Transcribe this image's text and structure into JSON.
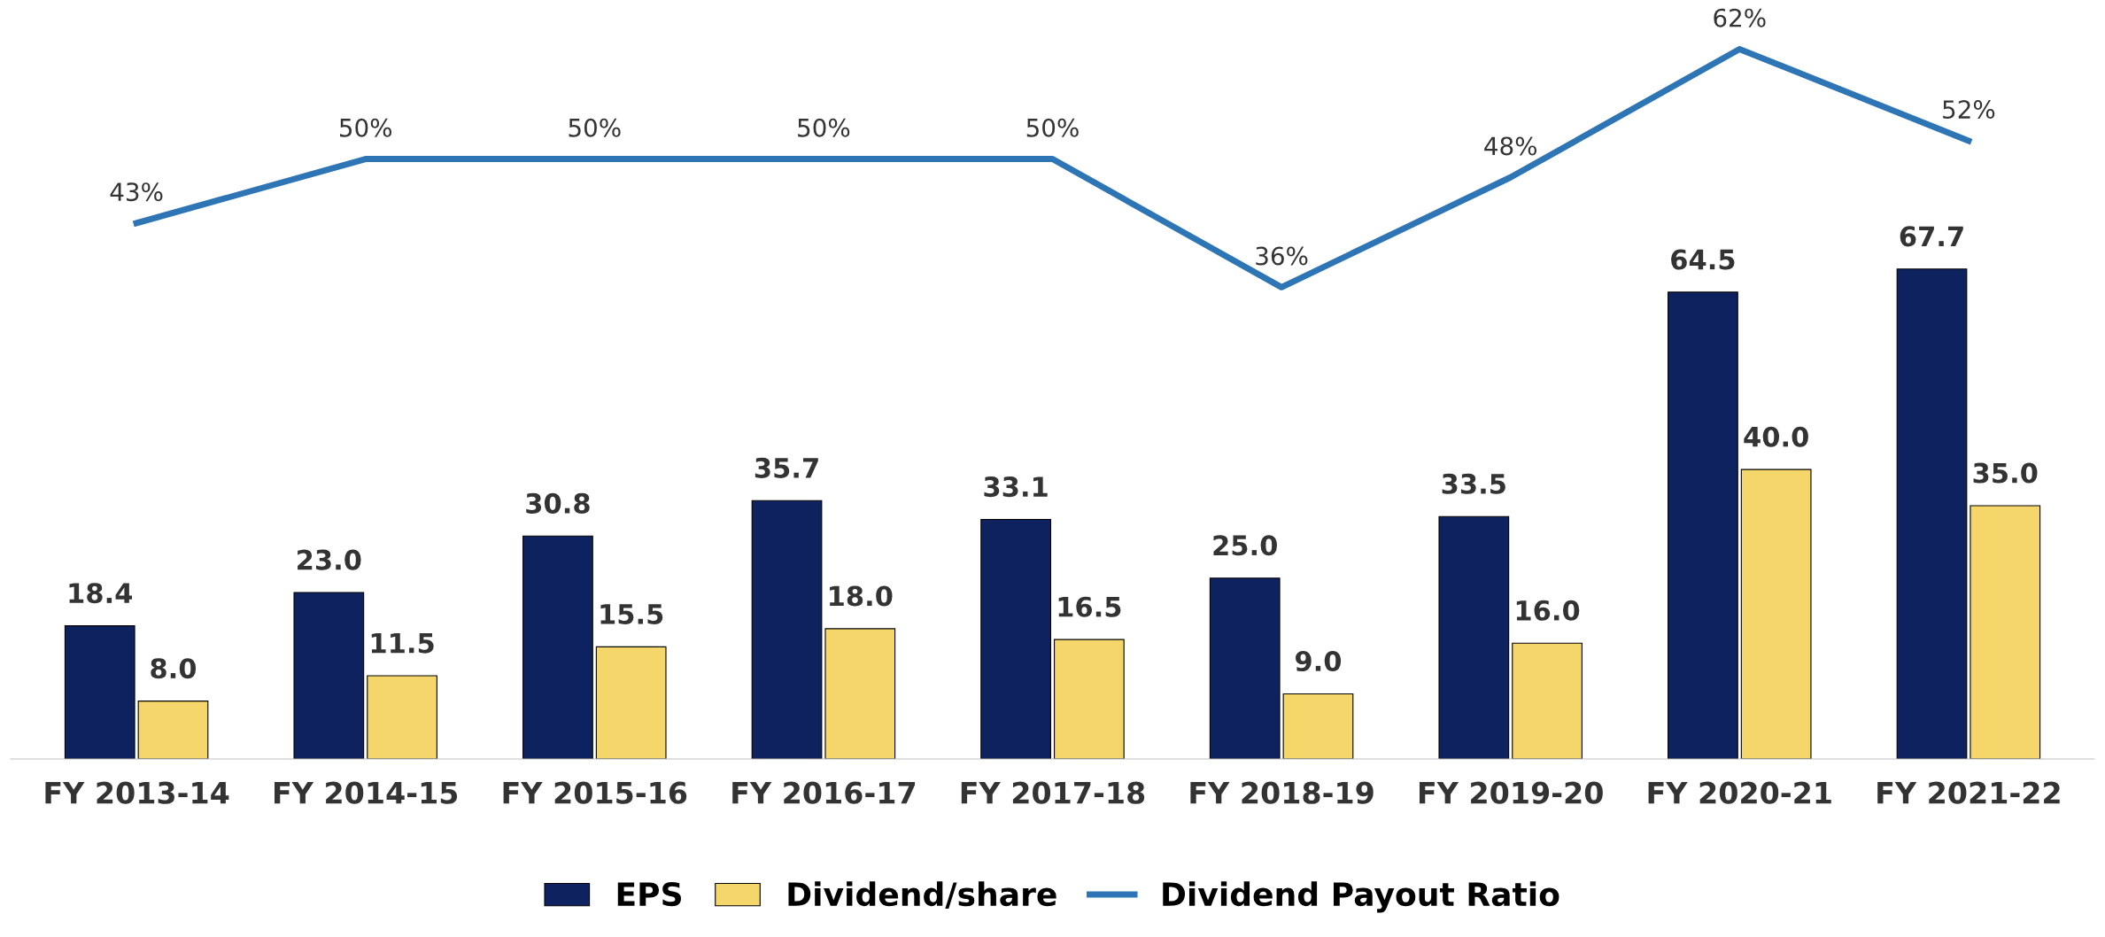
{
  "chart_data": {
    "type": "bar",
    "categories": [
      "FY 2013-14",
      "FY 2014-15",
      "FY 2015-16",
      "FY 2016-17",
      "FY 2017-18",
      "FY 2018-19",
      "FY 2019-20",
      "FY 2020-21",
      "FY 2021-22"
    ],
    "series": [
      {
        "name": "EPS",
        "color": "#0f2260",
        "values": [
          18.4,
          23.0,
          30.8,
          35.7,
          33.1,
          25.0,
          33.5,
          64.5,
          67.7
        ],
        "value_labels": [
          "18.4",
          "23.0",
          "30.8",
          "35.7",
          "33.1",
          "25.0",
          "33.5",
          "64.5",
          "67.7"
        ]
      },
      {
        "name": "Dividend/share",
        "color": "#f5d66a",
        "values": [
          8.0,
          11.5,
          15.5,
          18.0,
          16.5,
          9.0,
          16.0,
          40.0,
          35.0
        ],
        "value_labels": [
          "8.0",
          "11.5",
          "15.5",
          "18.0",
          "16.5",
          "9.0",
          "16.0",
          "40.0",
          "35.0"
        ]
      },
      {
        "name": "Dividend Payout Ratio",
        "type": "line",
        "axis": "y2",
        "color": "#2e75b6",
        "values": [
          43,
          50,
          50,
          50,
          50,
          36,
          48,
          62,
          52
        ],
        "value_labels": [
          "43%",
          "50%",
          "50%",
          "50%",
          "50%",
          "36%",
          "48%",
          "62%",
          "52%"
        ]
      }
    ],
    "data_labels": true,
    "tick_labels": "x",
    "legend": "bottom",
    "grid": false
  }
}
